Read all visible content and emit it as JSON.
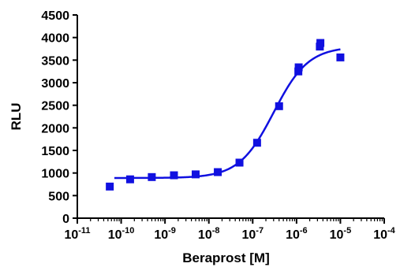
{
  "chart_data": {
    "type": "scatter",
    "title": "",
    "xlabel": "Beraprost [M]",
    "ylabel": "RLU",
    "x_scale": "log",
    "xlim": [
      1e-11,
      0.0001
    ],
    "ylim": [
      0,
      4500
    ],
    "x_ticks": [
      {
        "base": "10",
        "exp": "-11"
      },
      {
        "base": "10",
        "exp": "-10"
      },
      {
        "base": "10",
        "exp": "-9"
      },
      {
        "base": "10",
        "exp": "-8"
      },
      {
        "base": "10",
        "exp": "-7"
      },
      {
        "base": "10",
        "exp": "-6"
      },
      {
        "base": "10",
        "exp": "-5"
      },
      {
        "base": "10",
        "exp": "-4"
      }
    ],
    "y_ticks": [
      "0",
      "500",
      "1000",
      "1500",
      "2000",
      "2500",
      "3000",
      "3500",
      "4000",
      "4500"
    ],
    "grid": false,
    "legend": "none",
    "series": [
      {
        "marker": "square",
        "color": "#1010e0",
        "points": [
          {
            "x": 5.5e-11,
            "y": 700
          },
          {
            "x": 1.6e-10,
            "y": 860
          },
          {
            "x": 5e-10,
            "y": 910
          },
          {
            "x": 1.6e-09,
            "y": 950
          },
          {
            "x": 5e-09,
            "y": 970
          },
          {
            "x": 1.6e-08,
            "y": 1020
          },
          {
            "x": 5e-08,
            "y": 1230
          },
          {
            "x": 1.26e-07,
            "y": 1670
          },
          {
            "x": 4e-07,
            "y": 2480
          },
          {
            "x": 1.1e-06,
            "y": 3250
          },
          {
            "x": 1.12e-06,
            "y": 3340
          },
          {
            "x": 3.4e-06,
            "y": 3800
          },
          {
            "x": 3.5e-06,
            "y": 3880
          },
          {
            "x": 1e-05,
            "y": 3560
          }
        ]
      }
    ],
    "fit_curve": {
      "model": "four-parameter logistic",
      "color": "#1010e0",
      "x_range": [
        7e-11,
        1e-05
      ],
      "bottom": 890,
      "top": 3800,
      "log_ec50": -6.52,
      "hill_slope": 1.1
    }
  }
}
